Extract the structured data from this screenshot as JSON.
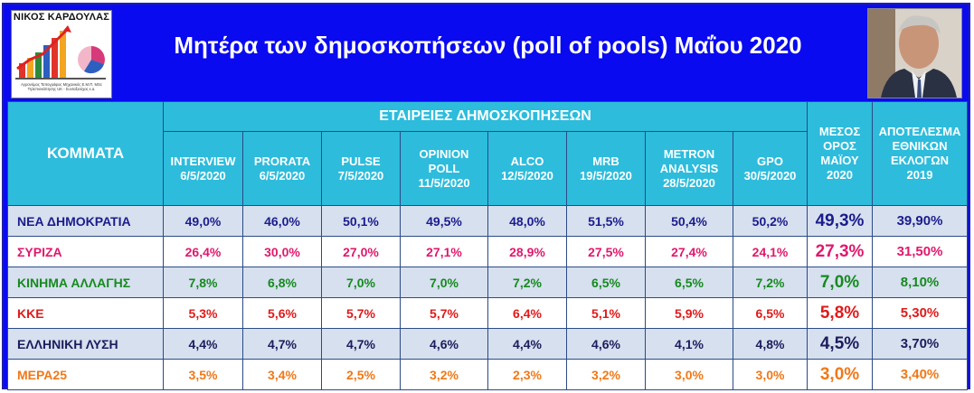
{
  "header": {
    "logo_name": "ΝΙΚΟΣ ΚΑΡΔΟΥΛΑΣ",
    "logo_subtitle": "Αγρονόμος Τοπογράφος Μηχανικός Ε.Μ.Π. MSc Τηλεπισκόπησης UK - Συνταξιούχος ε.α.",
    "title": "Μητέρα των δημοσκοπήσεων  (poll of pools) Μαΐου 2020"
  },
  "table": {
    "parties_header": "ΚΟΜΜΑΤΑ",
    "companies_header": "ΕΤΑΙΡΕΙΕΣ ΔΗΜΟΣΚΟΠΗΣΕΩΝ",
    "average_header": [
      "ΜΕΣΟΣ",
      "ΟΡΟΣ",
      "ΜΑΪΟΥ",
      "2020"
    ],
    "result_header": [
      "ΑΠΟΤΕΛΕΣΜΑ",
      "ΕΘΝΙΚΩΝ",
      "ΕΚΛΟΓΩΝ",
      "2019"
    ],
    "pollsters": [
      {
        "lines": [
          "INTERVIEW",
          "6/5/2020"
        ]
      },
      {
        "lines": [
          "PRORATA",
          "6/5/2020"
        ]
      },
      {
        "lines": [
          "PULSE",
          "7/5/2020"
        ]
      },
      {
        "lines": [
          "OPINION",
          "POLL",
          "11/5/2020"
        ]
      },
      {
        "lines": [
          "ALCO",
          "12/5/2020"
        ]
      },
      {
        "lines": [
          "MRB",
          "19/5/2020"
        ]
      },
      {
        "lines": [
          "METRON",
          "ANALYSIS",
          "28/5/2020"
        ]
      },
      {
        "lines": [
          "GPO",
          "30/5/2020"
        ]
      }
    ],
    "rows": [
      {
        "party": "ΝΕΑ ΔΗΜΟΚΡΑΤΙΑ",
        "color": "#1c1c8c",
        "bg": "blue",
        "values": [
          "49,0%",
          "46,0%",
          "50,1%",
          "49,5%",
          "48,0%",
          "51,5%",
          "50,4%",
          "50,2%"
        ],
        "average": "49,3%",
        "result": "39,90%"
      },
      {
        "party": "ΣΥΡΙΖΑ",
        "color": "#e0186c",
        "bg": "white",
        "values": [
          "26,4%",
          "30,0%",
          "27,0%",
          "27,1%",
          "28,9%",
          "27,5%",
          "27,4%",
          "24,1%"
        ],
        "average": "27,3%",
        "result": "31,50%"
      },
      {
        "party": "ΚΙΝΗΜΑ ΑΛΛΑΓΗΣ",
        "color": "#168a1e",
        "bg": "blue",
        "values": [
          "7,8%",
          "6,8%",
          "7,0%",
          "7,0%",
          "7,2%",
          "6,5%",
          "6,5%",
          "7,2%"
        ],
        "average": "7,0%",
        "result": "8,10%"
      },
      {
        "party": "ΚΚΕ",
        "color": "#e01a1a",
        "bg": "white",
        "values": [
          "5,3%",
          "5,6%",
          "5,7%",
          "5,7%",
          "6,4%",
          "5,1%",
          "5,9%",
          "6,5%"
        ],
        "average": "5,8%",
        "result": "5,30%"
      },
      {
        "party": "ΕΛΛΗΝΙΚΗ ΛΥΣΗ",
        "color": "#1c1c5c",
        "bg": "blue",
        "values": [
          "4,4%",
          "4,7%",
          "4,7%",
          "4,6%",
          "4,4%",
          "4,6%",
          "4,1%",
          "4,8%"
        ],
        "average": "4,5%",
        "result": "3,70%"
      },
      {
        "party": "ΜΕΡΑ25",
        "color": "#f07818",
        "bg": "white",
        "values": [
          "3,5%",
          "3,4%",
          "2,5%",
          "3,2%",
          "2,3%",
          "3,2%",
          "3,0%",
          "3,0%"
        ],
        "average": "3,0%",
        "result": "3,40%"
      }
    ]
  },
  "colors": {
    "background": "#0a0af0",
    "header_cells": "#2dbcdc",
    "row_shade": "#d6e0ef"
  }
}
